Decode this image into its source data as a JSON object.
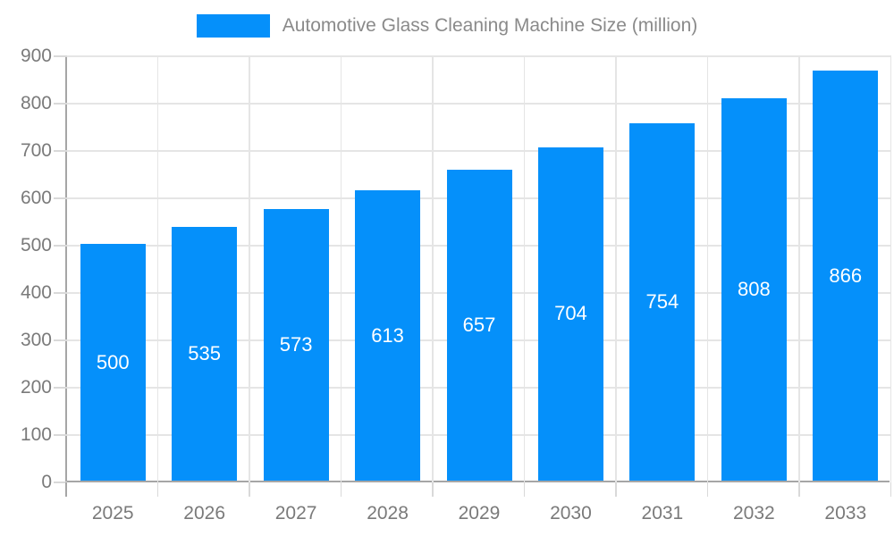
{
  "legend": {
    "label": "Automotive Glass Cleaning Machine Size (million)"
  },
  "colors": {
    "bar": "#0590fa",
    "grid": "#e5e5e5",
    "axis": "#a6a6a6",
    "tick": "#d9d9d9",
    "axis_label": "#7a7a7a",
    "legend_text": "#8a8a8a",
    "bar_label": "#ffffff",
    "background": "#ffffff"
  },
  "chart_data": {
    "type": "bar",
    "title": "Automotive Glass Cleaning Machine Size (million)",
    "categories": [
      "2025",
      "2026",
      "2027",
      "2028",
      "2029",
      "2030",
      "2031",
      "2032",
      "2033"
    ],
    "values": [
      500,
      535,
      573,
      613,
      657,
      704,
      754,
      808,
      866
    ],
    "xlabel": "",
    "ylabel": "",
    "ylim": [
      0,
      900
    ],
    "ytick_step": 100,
    "ytick_labels": [
      "0",
      "100",
      "200",
      "300",
      "400",
      "500",
      "600",
      "700",
      "800",
      "900"
    ],
    "grid": true,
    "legend_position": "top-center",
    "bar_value_labels": "inside-center"
  }
}
